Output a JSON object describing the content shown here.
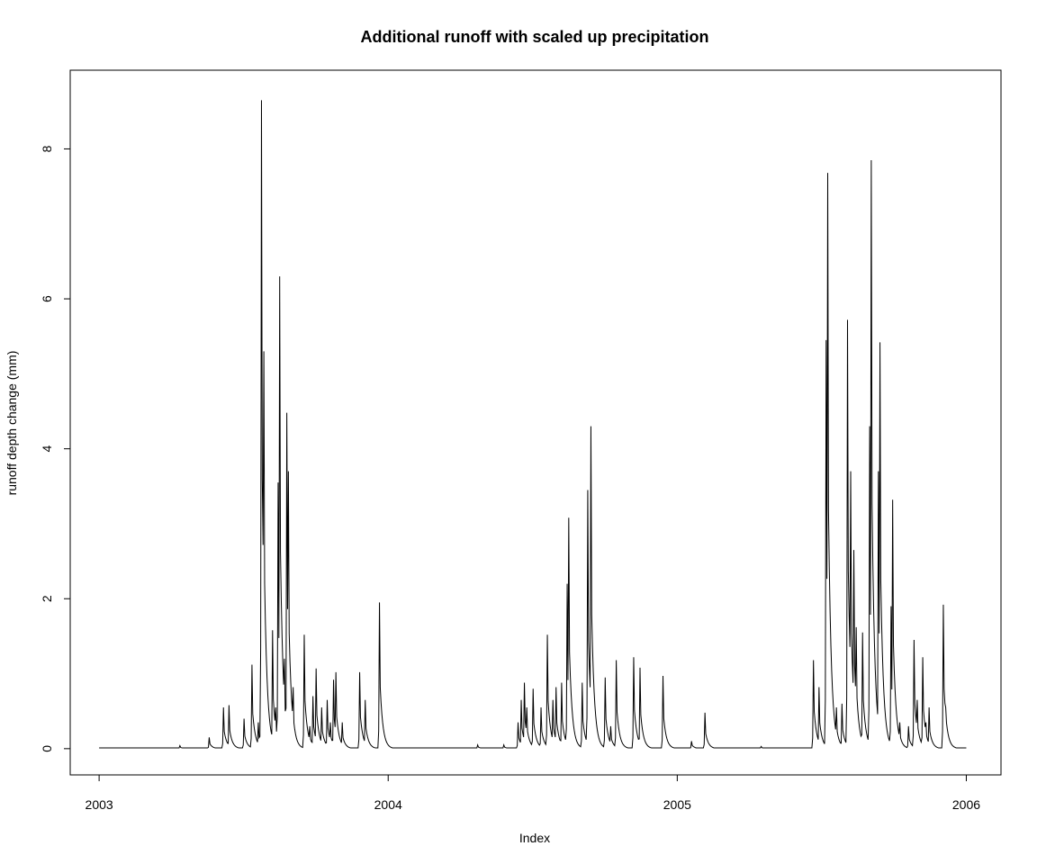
{
  "chart_data": {
    "type": "line",
    "title": "Additional runoff with scaled up precipitation",
    "xlabel": "Index",
    "ylabel": "runoff depth change (mm)",
    "xlim": [
      2002.9,
      2006.12
    ],
    "ylim": [
      -0.35,
      9.05
    ],
    "x_ticks": [
      {
        "value": 2003,
        "label": "2003"
      },
      {
        "value": 2004,
        "label": "2004"
      },
      {
        "value": 2005,
        "label": "2005"
      },
      {
        "value": 2006,
        "label": "2006"
      }
    ],
    "y_ticks": [
      {
        "value": 0,
        "label": "0"
      },
      {
        "value": 2,
        "label": "2"
      },
      {
        "value": 4,
        "label": "4"
      },
      {
        "value": 6,
        "label": "6"
      },
      {
        "value": 8,
        "label": "8"
      }
    ],
    "grid": false,
    "legend": "none",
    "line_color": "#000000",
    "baseline": 0.01,
    "events": [
      [
        2003.28,
        0.04
      ],
      [
        2003.38,
        0.15
      ],
      [
        2003.43,
        0.55
      ],
      [
        2003.45,
        0.58
      ],
      [
        2003.5,
        0.4
      ],
      [
        2003.53,
        1.12
      ],
      [
        2003.55,
        0.35
      ],
      [
        2003.56,
        1.35
      ],
      [
        2003.563,
        8.65
      ],
      [
        2003.57,
        5.3
      ],
      [
        2003.58,
        0.65
      ],
      [
        2003.6,
        1.58
      ],
      [
        2003.61,
        0.55
      ],
      [
        2003.62,
        3.55
      ],
      [
        2003.625,
        6.3
      ],
      [
        2003.64,
        1.2
      ],
      [
        2003.65,
        4.48
      ],
      [
        2003.655,
        3.7
      ],
      [
        2003.67,
        0.82
      ],
      [
        2003.71,
        1.52
      ],
      [
        2003.73,
        0.3
      ],
      [
        2003.74,
        0.7
      ],
      [
        2003.75,
        1.07
      ],
      [
        2003.77,
        0.55
      ],
      [
        2003.79,
        0.65
      ],
      [
        2003.8,
        0.35
      ],
      [
        2003.81,
        0.92
      ],
      [
        2003.82,
        1.02
      ],
      [
        2003.84,
        0.35
      ],
      [
        2003.9,
        1.02
      ],
      [
        2003.92,
        0.65
      ],
      [
        2003.97,
        1.95
      ],
      [
        2004.31,
        0.05
      ],
      [
        2004.4,
        0.05
      ],
      [
        2004.45,
        0.35
      ],
      [
        2004.46,
        0.65
      ],
      [
        2004.47,
        0.88
      ],
      [
        2004.48,
        0.55
      ],
      [
        2004.5,
        0.8
      ],
      [
        2004.53,
        0.55
      ],
      [
        2004.55,
        1.52
      ],
      [
        2004.57,
        0.65
      ],
      [
        2004.58,
        0.82
      ],
      [
        2004.6,
        0.88
      ],
      [
        2004.62,
        2.2
      ],
      [
        2004.625,
        3.08
      ],
      [
        2004.67,
        0.88
      ],
      [
        2004.69,
        3.45
      ],
      [
        2004.7,
        4.3
      ],
      [
        2004.75,
        0.95
      ],
      [
        2004.77,
        0.3
      ],
      [
        2004.79,
        1.18
      ],
      [
        2004.85,
        1.22
      ],
      [
        2004.87,
        1.08
      ],
      [
        2004.95,
        0.97
      ],
      [
        2005.05,
        0.1
      ],
      [
        2005.095,
        0.48
      ],
      [
        2005.29,
        0.03
      ],
      [
        2005.47,
        1.18
      ],
      [
        2005.49,
        0.82
      ],
      [
        2005.515,
        5.45
      ],
      [
        2005.52,
        7.68
      ],
      [
        2005.55,
        0.55
      ],
      [
        2005.57,
        0.6
      ],
      [
        2005.59,
        5.72
      ],
      [
        2005.6,
        3.7
      ],
      [
        2005.61,
        2.65
      ],
      [
        2005.62,
        1.62
      ],
      [
        2005.64,
        1.55
      ],
      [
        2005.665,
        4.3
      ],
      [
        2005.67,
        7.85
      ],
      [
        2005.695,
        3.7
      ],
      [
        2005.7,
        5.42
      ],
      [
        2005.72,
        0.35
      ],
      [
        2005.74,
        1.9
      ],
      [
        2005.745,
        3.32
      ],
      [
        2005.77,
        0.35
      ],
      [
        2005.8,
        0.3
      ],
      [
        2005.82,
        1.45
      ],
      [
        2005.83,
        0.65
      ],
      [
        2005.85,
        1.22
      ],
      [
        2005.86,
        0.35
      ],
      [
        2005.87,
        0.55
      ],
      [
        2005.92,
        1.92
      ],
      [
        2005.93,
        0.55
      ]
    ]
  }
}
